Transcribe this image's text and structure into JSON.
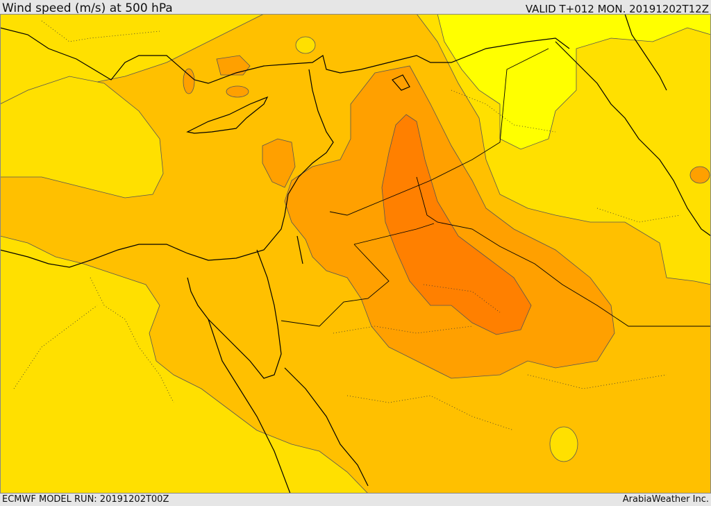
{
  "header": {
    "title": "Wind speed (m/s) at 500 hPa",
    "valid_time": "VALID T+012 MON. 20191202T12Z"
  },
  "footer": {
    "model_run": "ECMWF MODEL RUN: 20191202T00Z",
    "credit": "ArabiaWeather Inc."
  },
  "map": {
    "variable": "wind speed at 500 hPa",
    "colors": {
      "lightest": "#ffff00",
      "light": "#ffe000",
      "mid": "#ffc000",
      "orange": "#ffa000",
      "dark_orange": "#ff8000",
      "contour": "#555555",
      "coast": "#000000"
    }
  }
}
